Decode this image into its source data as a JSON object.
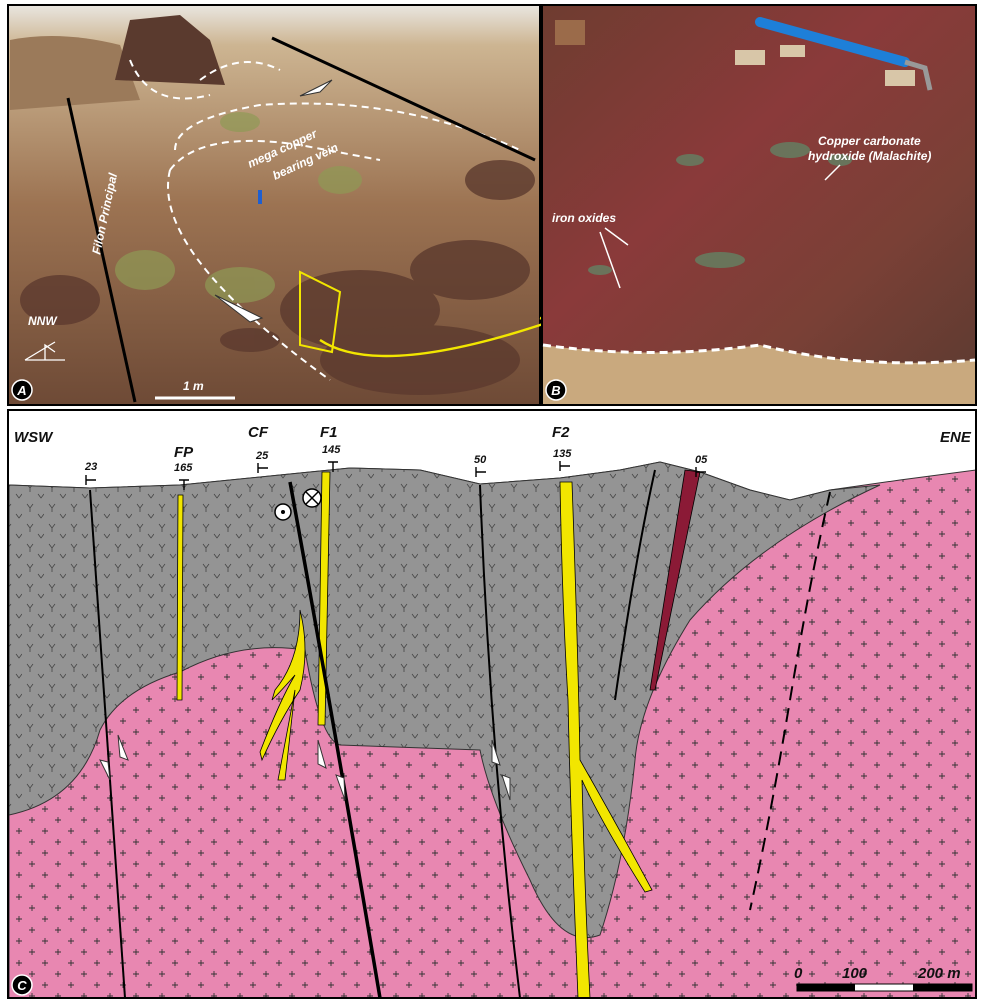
{
  "panel_a": {
    "label": "A",
    "filon": "Filon Principal",
    "vein": [
      "mega copper",
      "bearing vein"
    ],
    "direction": "NNW",
    "scale": "1 m"
  },
  "panel_b": {
    "label": "B",
    "malachite": [
      "Copper carbonate",
      "hydroxide (Malachite)"
    ],
    "iron": "iron oxides"
  },
  "panel_c": {
    "label": "C",
    "west": "WSW",
    "east": "ENE",
    "faults": [
      "FP",
      "CF",
      "F1",
      "F2"
    ],
    "dips": [
      "23",
      "165",
      "25",
      "145",
      "50",
      "135",
      "05"
    ],
    "scale": [
      "0",
      "100",
      "200 m"
    ]
  }
}
